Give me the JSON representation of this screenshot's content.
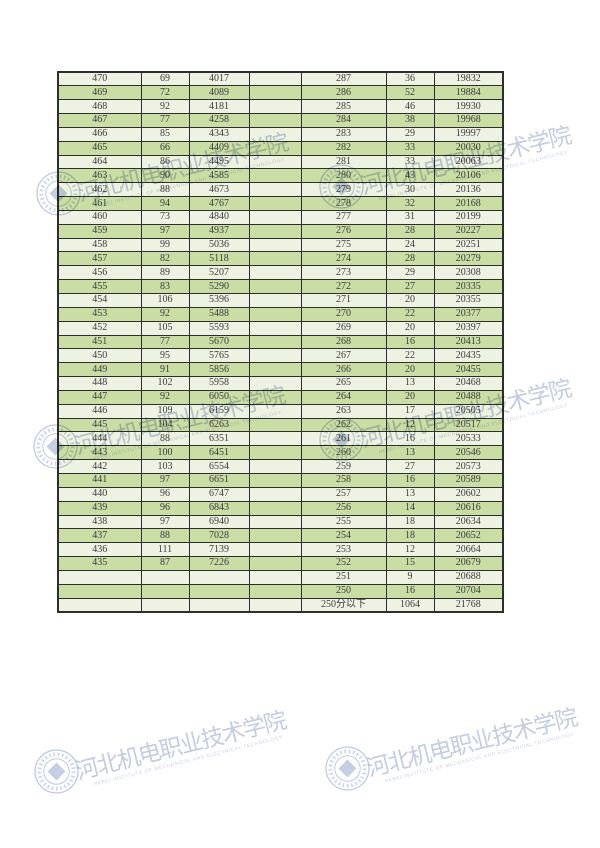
{
  "watermark": {
    "cn": "河北机电职业技术学院",
    "en": "HEBEI INSTITUTE OF MECHANICAL AND ELECTRICAL TECHNOLOGY",
    "color": "#a9b7d6"
  },
  "table": {
    "colors": {
      "row_light": "#eef2e2",
      "row_green": "#c9dda4",
      "border": "#2e2e2e",
      "text": "#3c3c3c"
    },
    "rows": [
      [
        "470",
        "69",
        "4017",
        "",
        "287",
        "36",
        "19832"
      ],
      [
        "469",
        "72",
        "4089",
        "",
        "286",
        "52",
        "19884"
      ],
      [
        "468",
        "92",
        "4181",
        "",
        "285",
        "46",
        "19930"
      ],
      [
        "467",
        "77",
        "4258",
        "",
        "284",
        "38",
        "19968"
      ],
      [
        "466",
        "85",
        "4343",
        "",
        "283",
        "29",
        "19997"
      ],
      [
        "465",
        "66",
        "4409",
        "",
        "282",
        "33",
        "20030"
      ],
      [
        "464",
        "86",
        "4495",
        "",
        "281",
        "33",
        "20063"
      ],
      [
        "463",
        "90",
        "4585",
        "",
        "280",
        "43",
        "20106"
      ],
      [
        "462",
        "88",
        "4673",
        "",
        "279",
        "30",
        "20136"
      ],
      [
        "461",
        "94",
        "4767",
        "",
        "278",
        "32",
        "20168"
      ],
      [
        "460",
        "73",
        "4840",
        "",
        "277",
        "31",
        "20199"
      ],
      [
        "459",
        "97",
        "4937",
        "",
        "276",
        "28",
        "20227"
      ],
      [
        "458",
        "99",
        "5036",
        "",
        "275",
        "24",
        "20251"
      ],
      [
        "457",
        "82",
        "5118",
        "",
        "274",
        "28",
        "20279"
      ],
      [
        "456",
        "89",
        "5207",
        "",
        "273",
        "29",
        "20308"
      ],
      [
        "455",
        "83",
        "5290",
        "",
        "272",
        "27",
        "20335"
      ],
      [
        "454",
        "106",
        "5396",
        "",
        "271",
        "20",
        "20355"
      ],
      [
        "453",
        "92",
        "5488",
        "",
        "270",
        "22",
        "20377"
      ],
      [
        "452",
        "105",
        "5593",
        "",
        "269",
        "20",
        "20397"
      ],
      [
        "451",
        "77",
        "5670",
        "",
        "268",
        "16",
        "20413"
      ],
      [
        "450",
        "95",
        "5765",
        "",
        "267",
        "22",
        "20435"
      ],
      [
        "449",
        "91",
        "5856",
        "",
        "266",
        "20",
        "20455"
      ],
      [
        "448",
        "102",
        "5958",
        "",
        "265",
        "13",
        "20468"
      ],
      [
        "447",
        "92",
        "6050",
        "",
        "264",
        "20",
        "20488"
      ],
      [
        "446",
        "109",
        "6159",
        "",
        "263",
        "17",
        "20505"
      ],
      [
        "445",
        "104",
        "6263",
        "",
        "262",
        "12",
        "20517"
      ],
      [
        "444",
        "88",
        "6351",
        "",
        "261",
        "16",
        "20533"
      ],
      [
        "443",
        "100",
        "6451",
        "",
        "260",
        "13",
        "20546"
      ],
      [
        "442",
        "103",
        "6554",
        "",
        "259",
        "27",
        "20573"
      ],
      [
        "441",
        "97",
        "6651",
        "",
        "258",
        "16",
        "20589"
      ],
      [
        "440",
        "96",
        "6747",
        "",
        "257",
        "13",
        "20602"
      ],
      [
        "439",
        "96",
        "6843",
        "",
        "256",
        "14",
        "20616"
      ],
      [
        "438",
        "97",
        "6940",
        "",
        "255",
        "18",
        "20634"
      ],
      [
        "437",
        "88",
        "7028",
        "",
        "254",
        "18",
        "20652"
      ],
      [
        "436",
        "111",
        "7139",
        "",
        "253",
        "12",
        "20664"
      ],
      [
        "435",
        "87",
        "7226",
        "",
        "252",
        "15",
        "20679"
      ],
      [
        "",
        "",
        "",
        "",
        "251",
        "9",
        "20688"
      ],
      [
        "",
        "",
        "",
        "",
        "250",
        "16",
        "20704"
      ],
      [
        "",
        "",
        "",
        "",
        "250分以下",
        "1064",
        "21768"
      ]
    ]
  }
}
